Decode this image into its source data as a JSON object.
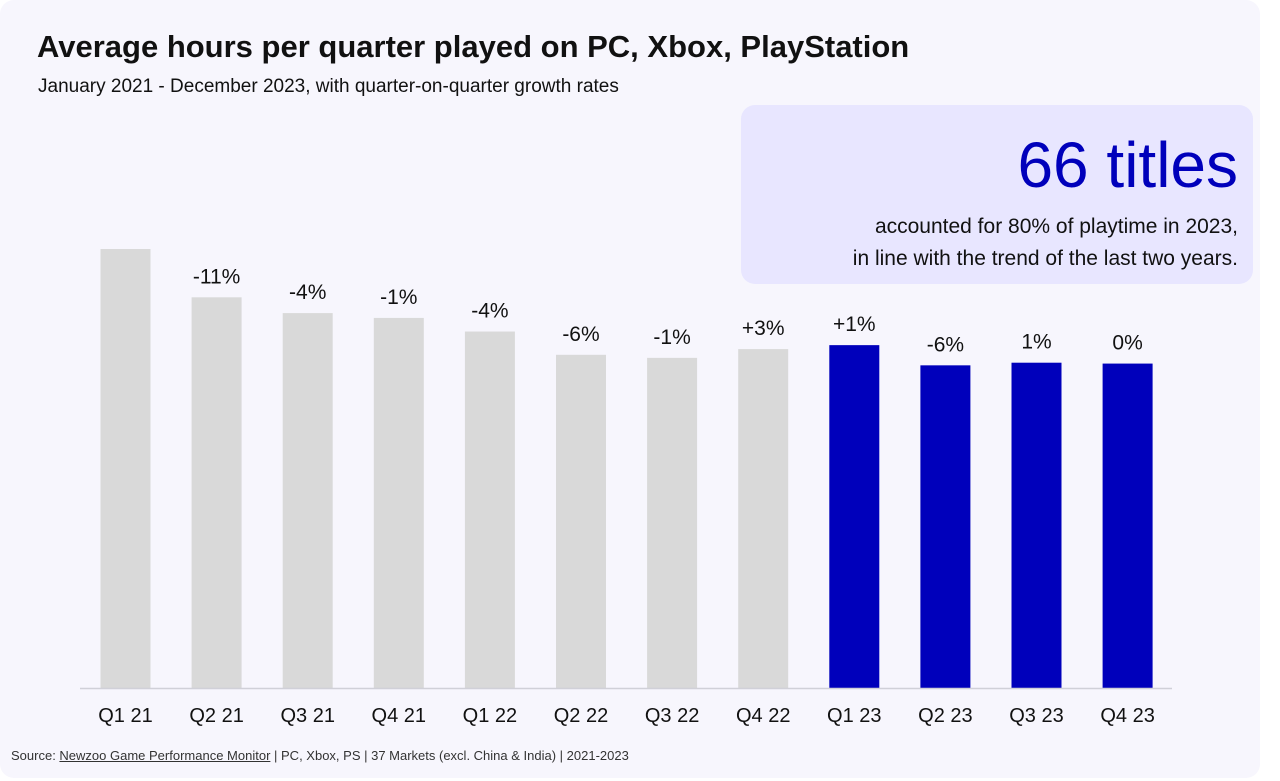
{
  "title": "Average hours per quarter played on PC, Xbox, PlayStation",
  "subtitle": "January 2021 - December 2023, with quarter-on-quarter growth rates",
  "callout": {
    "headline": "66 titles",
    "line1": "accounted for 80% of playtime  in 2023,",
    "line2": "in line with the trend of  the last two years."
  },
  "source": {
    "prefix": "Source: ",
    "link": "Newzoo Game Performance Monitor",
    "suffix": " | PC, Xbox, PS  | 37 Markets (excl. China & India) | 2021-2023"
  },
  "colors": {
    "bar_default": "#d9d9d9",
    "bar_highlight": "#0000bb",
    "axis": "#d0d0d8",
    "callout_bg": "#e8e6ff",
    "headline": "#0000bb"
  },
  "chart_data": {
    "type": "bar",
    "categories": [
      "Q1 21",
      "Q2 21",
      "Q3 21",
      "Q4 21",
      "Q1 22",
      "Q2 22",
      "Q3 22",
      "Q4 22",
      "Q1 23",
      "Q2 23",
      "Q3 23",
      "Q4 23"
    ],
    "values": [
      100,
      89,
      85.4,
      84.3,
      81.2,
      75.9,
      75.2,
      77.2,
      78.1,
      73.5,
      74.1,
      73.9
    ],
    "value_unit": "index (Q1 21 = 100)",
    "growth_labels": [
      "",
      "-11%",
      "-4%",
      "-1%",
      "-4%",
      "-6%",
      "-1%",
      "+3%",
      "+1%",
      "-6%",
      "1%",
      "0%"
    ],
    "highlighted": [
      false,
      false,
      false,
      false,
      false,
      false,
      false,
      false,
      true,
      true,
      true,
      true
    ],
    "ylim": [
      0,
      100
    ],
    "grid": false,
    "legend": "none"
  }
}
